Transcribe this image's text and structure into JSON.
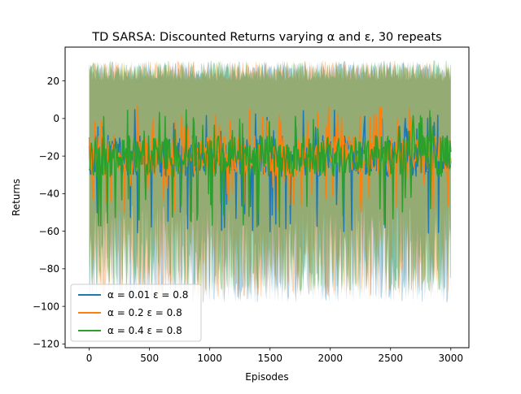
{
  "chart_data": {
    "type": "line",
    "title": "TD SARSA: Discounted Returns varying α and ε, 30 repeats",
    "xlabel": "Episodes",
    "ylabel": "Returns",
    "xlim": [
      -200,
      3150
    ],
    "ylim": [
      -122,
      38
    ],
    "xticks": [
      0,
      500,
      1000,
      1500,
      2000,
      2500,
      3000
    ],
    "yticks": [
      -120,
      -100,
      -80,
      -60,
      -40,
      -20,
      0,
      20
    ],
    "n_episodes": 3000,
    "legend_position": "lower-left",
    "series": [
      {
        "name": "α = 0.01 ε = 0.8",
        "color": "#1f77b4",
        "mean_center": -20,
        "mean_range": [
          -61,
          5
        ],
        "band_lower_range": [
          -98,
          -45
        ],
        "band_upper_range": [
          20,
          31
        ],
        "band_opacity": 0.35
      },
      {
        "name": "α = 0.2 ε = 0.8",
        "color": "#ff7f0e",
        "mean_center": -20,
        "mean_range": [
          -50,
          7
        ],
        "band_lower_range": [
          -95,
          -45
        ],
        "band_upper_range": [
          20,
          31
        ],
        "band_opacity": 0.35
      },
      {
        "name": "α = 0.4 ε = 0.8",
        "color": "#2ca02c",
        "mean_center": -20,
        "mean_range": [
          -58,
          5
        ],
        "band_lower_range": [
          -92,
          -45
        ],
        "band_upper_range": [
          20,
          31
        ],
        "band_opacity": 0.35
      }
    ]
  },
  "legend": {
    "items": [
      {
        "label": "α = 0.01 ε = 0.8",
        "color": "#1f77b4"
      },
      {
        "label": "α = 0.2 ε = 0.8",
        "color": "#ff7f0e"
      },
      {
        "label": "α = 0.4 ε = 0.8",
        "color": "#2ca02c"
      }
    ]
  }
}
